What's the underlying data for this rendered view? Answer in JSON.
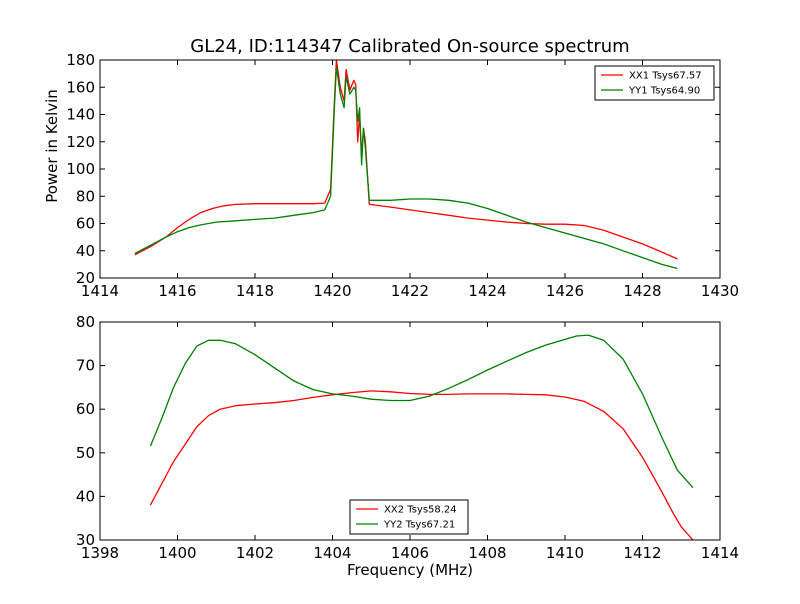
{
  "chart_data": [
    {
      "type": "line",
      "title": "GL24, ID:114347 Calibrated On-source spectrum",
      "ylabel": "Power in Kelvin",
      "xlabel": "",
      "xlim": [
        1414,
        1430
      ],
      "ylim": [
        20,
        180
      ],
      "xticks": [
        "1414",
        "1416",
        "1418",
        "1420",
        "1422",
        "1424",
        "1426",
        "1428",
        "1430"
      ],
      "yticks": [
        "20",
        "40",
        "60",
        "80",
        "100",
        "120",
        "140",
        "160",
        "180"
      ],
      "legend_position": "top-right",
      "series": [
        {
          "name": "XX1 Tsys67.57",
          "color": "#ff0000",
          "x": [
            1414.9,
            1415.3,
            1415.7,
            1416.0,
            1416.3,
            1416.6,
            1416.9,
            1417.2,
            1417.5,
            1418.0,
            1418.5,
            1419.0,
            1419.5,
            1419.8,
            1419.95,
            1420.05,
            1420.1,
            1420.2,
            1420.3,
            1420.35,
            1420.45,
            1420.55,
            1420.6,
            1420.65,
            1420.7,
            1420.75,
            1420.8,
            1420.85,
            1420.95,
            1421.5,
            1422.0,
            1422.5,
            1423.0,
            1423.5,
            1424.0,
            1424.5,
            1425.0,
            1425.5,
            1426.0,
            1426.5,
            1427.0,
            1427.5,
            1428.0,
            1428.5,
            1428.9
          ],
          "y": [
            37,
            43,
            50,
            57,
            63,
            68,
            71,
            73,
            74,
            74.5,
            74.5,
            74.5,
            74.5,
            75,
            85,
            150,
            180,
            160,
            150,
            173,
            158,
            165,
            162,
            120,
            140,
            110,
            130,
            120,
            74,
            72,
            70,
            68,
            66,
            64,
            62.5,
            61,
            60,
            59.5,
            59.5,
            58.5,
            55,
            50,
            45,
            39,
            34
          ]
        },
        {
          "name": "YY1 Tsys64.90",
          "color": "#008000",
          "x": [
            1414.9,
            1415.3,
            1415.7,
            1416.0,
            1416.3,
            1416.6,
            1417.0,
            1417.5,
            1418.0,
            1418.5,
            1419.0,
            1419.5,
            1419.8,
            1419.95,
            1420.05,
            1420.1,
            1420.2,
            1420.3,
            1420.35,
            1420.45,
            1420.55,
            1420.6,
            1420.65,
            1420.7,
            1420.75,
            1420.8,
            1420.85,
            1420.95,
            1421.5,
            1422.0,
            1422.5,
            1423.0,
            1423.5,
            1424.0,
            1424.5,
            1425.0,
            1425.5,
            1426.0,
            1426.5,
            1427.0,
            1427.5,
            1428.0,
            1428.5,
            1428.9
          ],
          "y": [
            38,
            44,
            50,
            54,
            57,
            59,
            61,
            62,
            63,
            64,
            66,
            68,
            70,
            80,
            145,
            175,
            155,
            145,
            168,
            155,
            160,
            158,
            135,
            145,
            103,
            130,
            115,
            77,
            77,
            78,
            78,
            77,
            75,
            71,
            66,
            61,
            57,
            53,
            49,
            45,
            40,
            35,
            30,
            27
          ]
        }
      ]
    },
    {
      "type": "line",
      "title": "",
      "ylabel": "",
      "xlabel": "Frequency (MHz)",
      "xlim": [
        1398,
        1414
      ],
      "ylim": [
        30,
        80
      ],
      "xticks": [
        "1398",
        "1400",
        "1402",
        "1404",
        "1406",
        "1408",
        "1410",
        "1412",
        "1414"
      ],
      "yticks": [
        "30",
        "40",
        "50",
        "60",
        "70",
        "80"
      ],
      "legend_position": "lower-center",
      "series": [
        {
          "name": "XX2 Tsys58.24",
          "color": "#ff0000",
          "x": [
            1399.3,
            1399.6,
            1399.9,
            1400.2,
            1400.5,
            1400.8,
            1401.1,
            1401.5,
            1402.0,
            1402.5,
            1403.0,
            1403.5,
            1404.0,
            1404.5,
            1405.0,
            1405.5,
            1406.0,
            1406.5,
            1407.0,
            1407.5,
            1408.0,
            1408.5,
            1409.0,
            1409.5,
            1410.0,
            1410.5,
            1411.0,
            1411.5,
            1412.0,
            1412.5,
            1412.8,
            1413.0,
            1413.3
          ],
          "y": [
            38,
            43,
            48,
            52,
            56,
            58.5,
            60,
            60.8,
            61.2,
            61.5,
            62,
            62.7,
            63.3,
            63.8,
            64.2,
            64,
            63.6,
            63.4,
            63.4,
            63.5,
            63.5,
            63.5,
            63.4,
            63.3,
            62.8,
            61.8,
            59.5,
            55.5,
            49,
            41,
            36,
            33,
            30
          ]
        },
        {
          "name": "YY2 Tsys67.21",
          "color": "#008000",
          "x": [
            1399.3,
            1399.6,
            1399.9,
            1400.2,
            1400.5,
            1400.8,
            1401.1,
            1401.5,
            1402.0,
            1402.5,
            1403.0,
            1403.5,
            1404.0,
            1404.5,
            1405.0,
            1405.5,
            1406.0,
            1406.5,
            1407.0,
            1407.5,
            1408.0,
            1408.5,
            1409.0,
            1409.5,
            1410.0,
            1410.3,
            1410.6,
            1411.0,
            1411.5,
            1412.0,
            1412.5,
            1412.9,
            1413.3
          ],
          "y": [
            51.5,
            58,
            65,
            70.5,
            74.5,
            75.8,
            75.8,
            75,
            72.5,
            69.5,
            66.5,
            64.5,
            63.5,
            63,
            62.3,
            62,
            62,
            63,
            64.8,
            66.8,
            69,
            71,
            73,
            74.7,
            76,
            76.8,
            77,
            75.8,
            71.5,
            63.5,
            53.5,
            46,
            42
          ]
        }
      ]
    }
  ]
}
